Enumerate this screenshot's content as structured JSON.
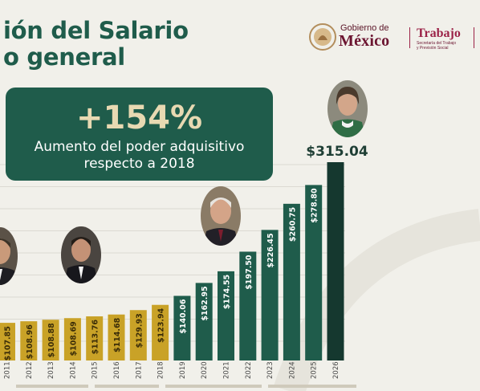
{
  "title": {
    "line1": "ión del Salario",
    "line2": "o general"
  },
  "header": {
    "gobierno_small": "Gobierno de",
    "gobierno_big": "México",
    "trabajo": "Trabajo",
    "trabajo_sub_1": "Secretaría del Trabajo",
    "trabajo_sub_2": "y Previsión Social"
  },
  "callout": {
    "big": "+154%",
    "sub_line1": "Aumento del poder adquisitivo",
    "sub_line2": "respecto a 2018"
  },
  "chart_data": {
    "type": "bar",
    "title": "",
    "xlabel": "",
    "ylabel": "",
    "grid": true,
    "categories": [
      "2011",
      "2012",
      "2013",
      "2014",
      "2015",
      "2016",
      "2017",
      "2018",
      "2019",
      "2020",
      "2021",
      "2022",
      "2023",
      "2024",
      "2025",
      "2026"
    ],
    "values": [
      59.82,
      62.33,
      64.76,
      67.29,
      70.1,
      73.04,
      80.04,
      88.36,
      102.68,
      123.22,
      141.7,
      172.87,
      207.44,
      248.93,
      278.8,
      315.04
    ],
    "data_labels": [
      "$107.85",
      "$108.96",
      "$108.88",
      "$108.69",
      "$113.76",
      "$114.68",
      "$129.93",
      "$123.94",
      "$140.06",
      "$162.95",
      "$174.55",
      "$197.50",
      "$226.45",
      "$260.75",
      "$278.80",
      "$315.04"
    ],
    "colors": {
      "gold": "#c9a227",
      "green": "#1f5c4b",
      "dark_green": "#15382f"
    },
    "highlight_index": 15
  },
  "portraits": [
    {
      "name": "portrait-1",
      "skin": "#c99a7a",
      "hair": "#3b3328"
    },
    {
      "name": "portrait-2",
      "skin": "#c49276",
      "hair": "#231d18"
    },
    {
      "name": "portrait-3",
      "skin": "#d4a488",
      "hair": "#e7e4df"
    },
    {
      "name": "portrait-4",
      "skin": "#d3a68a",
      "hair": "#4a3a2c"
    }
  ]
}
